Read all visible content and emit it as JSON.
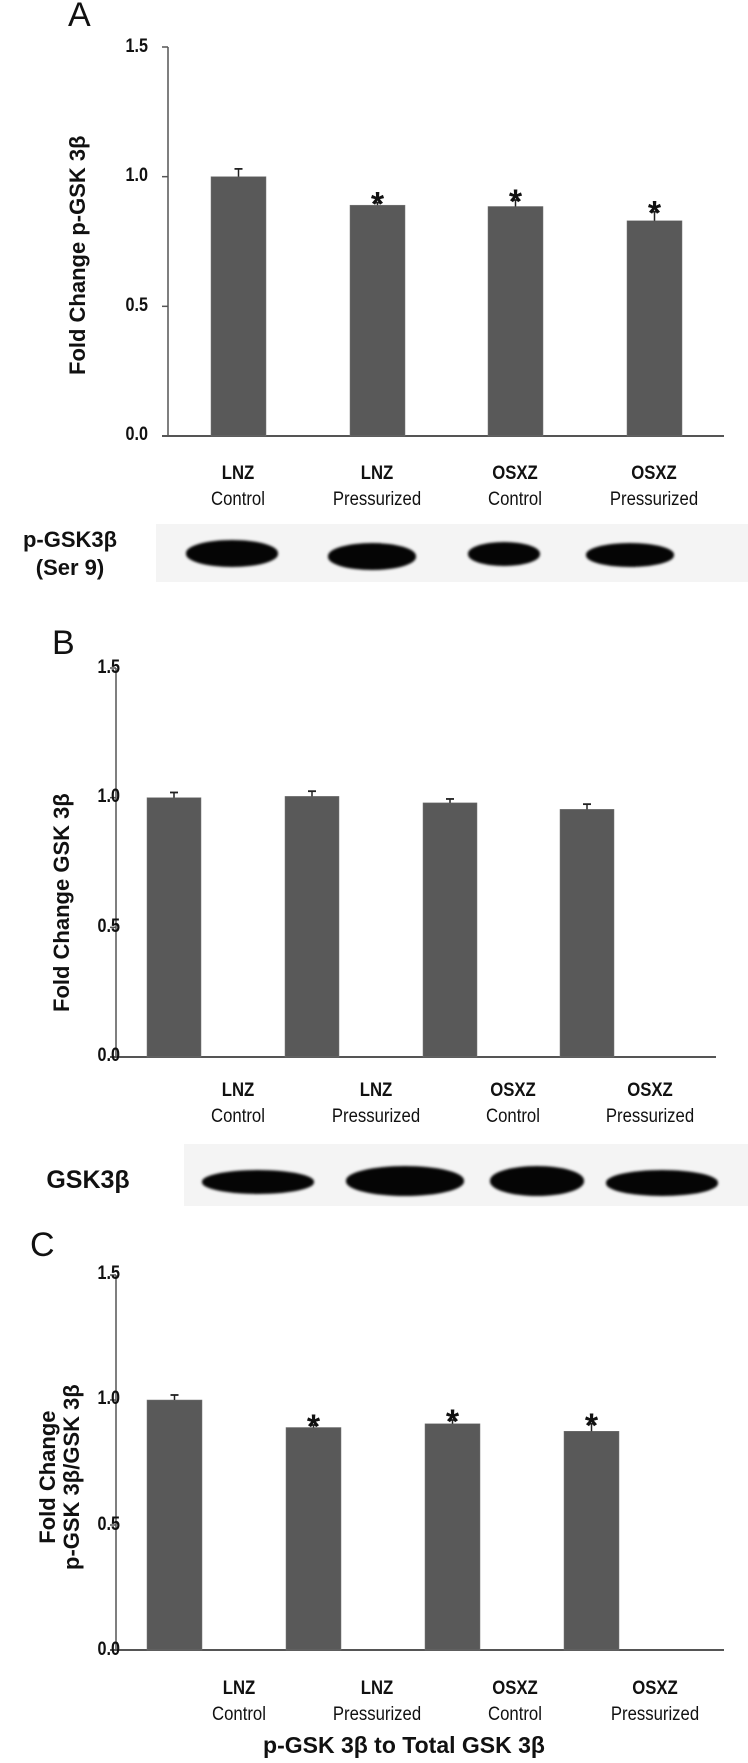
{
  "figure": {
    "panels": [
      {
        "letter": "A",
        "ylabel": "Fold Change p-GSK 3β",
        "blot_label_line1": "p-GSK3β",
        "blot_label_line2": "(Ser 9)"
      },
      {
        "letter": "B",
        "ylabel": "Fold Change GSK 3β",
        "blot_label_line1": "GSK3β",
        "blot_label_line2": ""
      },
      {
        "letter": "C",
        "ylabel_line1": "Fold Change",
        "ylabel_line2": "p-GSK 3β/GSK 3β",
        "xtitle": "p-GSK 3β to Total GSK 3β"
      }
    ],
    "yticks": [
      "0.0",
      "0.5",
      "1.0",
      "1.5"
    ],
    "categories": [
      {
        "line1": "LNZ",
        "line2": "Control"
      },
      {
        "line1": "LNZ",
        "line2": "Pressurized"
      },
      {
        "line1": "OSXZ",
        "line2": "Control"
      },
      {
        "line1": "OSXZ",
        "line2": "Pressurized"
      }
    ],
    "significance_marker": "*",
    "bar_color": "#595959",
    "axis_color": "#555555"
  },
  "chart_data": [
    {
      "type": "bar",
      "title": "A",
      "xlabel": "",
      "ylabel": "Fold Change p-GSK 3β",
      "categories": [
        "LNZ Control",
        "LNZ Pressurized",
        "OSXZ Control",
        "OSXZ Pressurized"
      ],
      "values": [
        1.0,
        0.89,
        0.885,
        0.83
      ],
      "errors": [
        0.03,
        0.01,
        0.025,
        0.035
      ],
      "significant": [
        false,
        true,
        true,
        true
      ],
      "ylim": [
        0,
        1.5
      ],
      "yticks": [
        0.0,
        0.5,
        1.0,
        1.5
      ],
      "grid": false,
      "blot": {
        "label": "p-GSK3β (Ser 9)",
        "lanes": 4
      }
    },
    {
      "type": "bar",
      "title": "B",
      "xlabel": "",
      "ylabel": "Fold Change GSK 3β",
      "categories": [
        "LNZ Control",
        "LNZ Pressurized",
        "OSXZ Control",
        "OSXZ Pressurized"
      ],
      "values": [
        1.0,
        1.005,
        0.98,
        0.955
      ],
      "errors": [
        0.02,
        0.02,
        0.015,
        0.02
      ],
      "significant": [
        false,
        false,
        false,
        false
      ],
      "ylim": [
        0,
        1.5
      ],
      "yticks": [
        0.0,
        0.5,
        1.0,
        1.5
      ],
      "grid": false,
      "blot": {
        "label": "GSK3β",
        "lanes": 4
      }
    },
    {
      "type": "bar",
      "title": "C",
      "xlabel": "p-GSK 3β to Total GSK 3β",
      "ylabel": "Fold Change p-GSK 3β/GSK 3β",
      "categories": [
        "LNZ Control",
        "LNZ Pressurized",
        "OSXZ Control",
        "OSXZ Pressurized"
      ],
      "values": [
        1.0,
        0.89,
        0.905,
        0.875
      ],
      "errors": [
        0.02,
        0.01,
        0.015,
        0.03
      ],
      "significant": [
        false,
        true,
        true,
        true
      ],
      "ylim": [
        0,
        1.5
      ],
      "yticks": [
        0.0,
        0.5,
        1.0,
        1.5
      ],
      "grid": false
    }
  ]
}
